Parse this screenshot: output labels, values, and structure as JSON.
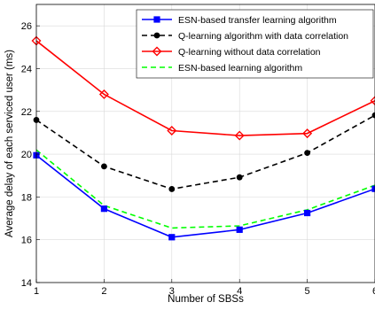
{
  "chart_data": {
    "type": "line",
    "title": "",
    "xlabel": "Number of SBSs",
    "ylabel": "Average delay of each serviced user (ms)",
    "x": [
      1,
      2,
      3,
      4,
      5,
      6
    ],
    "xlim": [
      1,
      6
    ],
    "ylim": [
      14,
      27
    ],
    "xticks": [
      "1",
      "2",
      "3",
      "4",
      "5",
      "6"
    ],
    "yticks": [
      "14",
      "16",
      "18",
      "20",
      "22",
      "24",
      "26"
    ],
    "grid": true,
    "legend_position": "top-right",
    "series": [
      {
        "name": "ESN-based transfer learning algorithm",
        "values": [
          19.95,
          17.45,
          16.12,
          16.47,
          17.25,
          18.38
        ],
        "color": "#0000ff",
        "line_style": "solid",
        "marker": "square"
      },
      {
        "name": "Q-learning algorithm with data correlation",
        "values": [
          21.6,
          19.43,
          18.37,
          18.92,
          20.06,
          21.82
        ],
        "color": "#000000",
        "line_style": "dashed",
        "marker": "circle"
      },
      {
        "name": "Q-learning without data correlation",
        "values": [
          25.3,
          22.8,
          21.1,
          20.87,
          20.97,
          22.5
        ],
        "color": "#ff0000",
        "line_style": "solid",
        "marker": "diamond"
      },
      {
        "name": "ESN-based learning algorithm",
        "values": [
          20.2,
          17.6,
          16.55,
          16.65,
          17.4,
          18.55
        ],
        "color": "#00ff00",
        "line_style": "dashed",
        "marker": "none"
      }
    ]
  }
}
